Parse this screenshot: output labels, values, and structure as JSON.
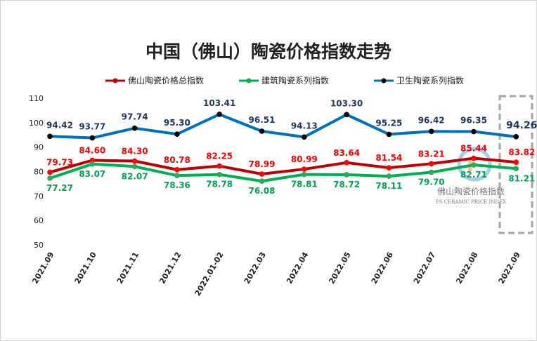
{
  "chart_data": {
    "type": "line",
    "title": "中国（佛山）陶瓷价格指数走势",
    "categories": [
      "2021.09",
      "2021.10",
      "2021.11",
      "2021.12",
      "2022.01-02",
      "2022.03",
      "2022.04",
      "2022.05",
      "2022.06",
      "2022.07",
      "2022.08",
      "2022.09"
    ],
    "ylim": [
      50,
      110
    ],
    "yticks": [
      50,
      60,
      70,
      80,
      90,
      100,
      110
    ],
    "grid": false,
    "legend": "top",
    "series": [
      {
        "name": "佛山陶瓷价格总指数",
        "color": "#c00000",
        "label_color": "#ff0000",
        "values": [
          79.73,
          84.6,
          84.3,
          80.78,
          82.25,
          78.99,
          80.99,
          83.64,
          81.54,
          83.21,
          85.44,
          83.82
        ]
      },
      {
        "name": "建筑陶瓷系列指数",
        "color": "#00b050",
        "label_color": "#00a550",
        "values": [
          77.27,
          83.07,
          82.07,
          78.36,
          78.78,
          76.08,
          78.81,
          78.72,
          78.11,
          79.7,
          82.71,
          81.21
        ]
      },
      {
        "name": "卫生陶瓷系列指数",
        "color": "#0070c0",
        "label_color": "#1f3864",
        "values": [
          94.42,
          93.77,
          97.74,
          95.3,
          103.41,
          96.51,
          94.13,
          103.3,
          95.25,
          96.42,
          96.35,
          94.26
        ]
      }
    ],
    "watermark": {
      "text": "佛山陶瓷价格指数",
      "subtext": "FS CERAMIC PRICE INDEX"
    }
  }
}
